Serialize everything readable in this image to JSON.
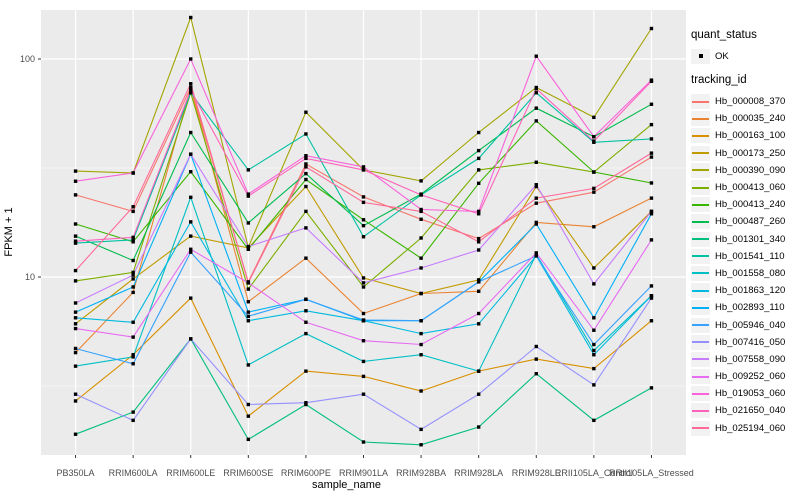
{
  "chart_data": {
    "type": "line",
    "title": "",
    "xlabel": "sample_name",
    "ylabel": "FPKM + 1",
    "y_scale": "log10",
    "ylim": [
      1.55,
      170
    ],
    "y_ticks": [
      100,
      10
    ],
    "y_tick_labels": [
      "100",
      "10"
    ],
    "y_minor_breaks": [
      31.62,
      3.162
    ],
    "grid": true,
    "legend_position": "right",
    "categories": [
      "PB350LA",
      "RRIM600LA",
      "RRIM600LE",
      "RRIM600SE",
      "RRIM600PE",
      "RRIM901LA",
      "RRIM928BA",
      "RRIM928LA",
      "RRIM928LE",
      "RRII105LA_Control",
      "RRII105LA_Stressed"
    ],
    "legend": {
      "quant_title": "quant_status",
      "quant_items": [
        {
          "label": "OK",
          "marker": "black-square-point"
        }
      ],
      "series_title": "tracking_id"
    },
    "series": [
      {
        "name": "Hb_000008_370",
        "color": "#F8766D",
        "values": [
          23.8,
          20,
          74,
          9.5,
          33,
          23.3,
          18.4,
          15,
          21.8,
          24.5,
          35.5
        ]
      },
      {
        "name": "Hb_000035_240",
        "color": "#EA8331",
        "values": [
          4.5,
          8.5,
          74,
          7.7,
          12.2,
          6.8,
          8.4,
          8.6,
          17.8,
          17,
          23
        ]
      },
      {
        "name": "Hb_000163_100",
        "color": "#D89000",
        "values": [
          2.7,
          4.4,
          8.0,
          2.3,
          3.7,
          3.5,
          3.0,
          3.7,
          4.2,
          3.8,
          6.3
        ]
      },
      {
        "name": "Hb_000173_250",
        "color": "#C09B00",
        "values": [
          6.1,
          9.8,
          15.4,
          13.6,
          26,
          9.9,
          8.4,
          9.7,
          26,
          11,
          20
        ]
      },
      {
        "name": "Hb_000390_090",
        "color": "#A3A500",
        "values": [
          30.6,
          30,
          155,
          13.7,
          57,
          31,
          27.6,
          46,
          74,
          54,
          138
        ]
      },
      {
        "name": "Hb_000413_060",
        "color": "#7CAE00",
        "values": [
          9.6,
          10.5,
          70,
          8.8,
          20,
          9.0,
          15.1,
          31,
          33.6,
          30.3,
          50
        ]
      },
      {
        "name": "Hb_000413_240",
        "color": "#39B600",
        "values": [
          17.5,
          14.5,
          30.4,
          13.4,
          28,
          18.3,
          12.2,
          26.9,
          52,
          30.3,
          27
        ]
      },
      {
        "name": "Hb_000487_260",
        "color": "#00BB4E",
        "values": [
          15.4,
          11.9,
          46,
          17.7,
          29.8,
          17.2,
          24,
          38,
          59.5,
          44,
          62
        ]
      },
      {
        "name": "Hb_001301_340",
        "color": "#00BF7D",
        "values": [
          1.9,
          2.4,
          5.2,
          1.8,
          2.6,
          1.75,
          1.7,
          2.05,
          3.6,
          2.2,
          3.1
        ]
      },
      {
        "name": "Hb_001541_110",
        "color": "#00C1A3",
        "values": [
          14.3,
          14.8,
          70,
          31,
          45.3,
          15.3,
          23.8,
          35,
          70,
          41.5,
          43
        ]
      },
      {
        "name": "Hb_001558_080",
        "color": "#00BFC4",
        "values": [
          3.9,
          4.3,
          23.2,
          3.95,
          5.5,
          4.1,
          4.4,
          3.7,
          12.7,
          4.6,
          8.2
        ]
      },
      {
        "name": "Hb_001863_120",
        "color": "#00BAE0",
        "values": [
          6.5,
          6.2,
          17.9,
          6.3,
          7.0,
          6.3,
          5.5,
          6.1,
          12.5,
          4.4,
          8.2
        ]
      },
      {
        "name": "Hb_002893_110",
        "color": "#00B0F6",
        "values": [
          6.9,
          9.0,
          36.6,
          6.9,
          7.9,
          6.3,
          6.3,
          9.5,
          17.5,
          6.5,
          19.5
        ]
      },
      {
        "name": "Hb_005946_040",
        "color": "#35A2FF",
        "values": [
          4.7,
          4.0,
          13.0,
          6.6,
          7.9,
          6.35,
          6.3,
          9.5,
          12.5,
          4.9,
          9.1
        ]
      },
      {
        "name": "Hb_007416_050",
        "color": "#9590FF",
        "values": [
          2.9,
          2.2,
          5.2,
          2.6,
          2.65,
          2.9,
          2.0,
          2.9,
          4.8,
          3.2,
          8.0
        ]
      },
      {
        "name": "Hb_007558_090",
        "color": "#C77CFF",
        "values": [
          7.6,
          10.2,
          36.6,
          13.8,
          16.8,
          9.4,
          11.0,
          13.3,
          26.5,
          9.3,
          20
        ]
      },
      {
        "name": "Hb_009252_060",
        "color": "#E76BF3",
        "values": [
          5.8,
          5.3,
          13.4,
          9.4,
          6.2,
          5.1,
          4.9,
          6.8,
          12.9,
          5.7,
          14.8
        ]
      },
      {
        "name": "Hb_019053_060",
        "color": "#FA62DB",
        "values": [
          27.5,
          30,
          100,
          24,
          36,
          32,
          20.4,
          20,
          103,
          44,
          80
        ]
      },
      {
        "name": "Hb_021650_040",
        "color": "#FF62BC",
        "values": [
          14.6,
          15.2,
          72,
          23.5,
          35,
          31,
          23.8,
          19.5,
          73,
          42,
          79
        ]
      },
      {
        "name": "Hb_025194_060",
        "color": "#FF6A98",
        "values": [
          10.7,
          21,
          77,
          9.4,
          32,
          22,
          20,
          14.5,
          23,
          25.5,
          37
        ]
      }
    ],
    "style": {
      "panel_bg": "#EBEBEB",
      "grid_color": "#FFFFFF",
      "tick_color": "#333333",
      "tick_label_color": "#4D4D4D",
      "point_color": "#000000",
      "key_bg": "#F2F2F2"
    }
  }
}
